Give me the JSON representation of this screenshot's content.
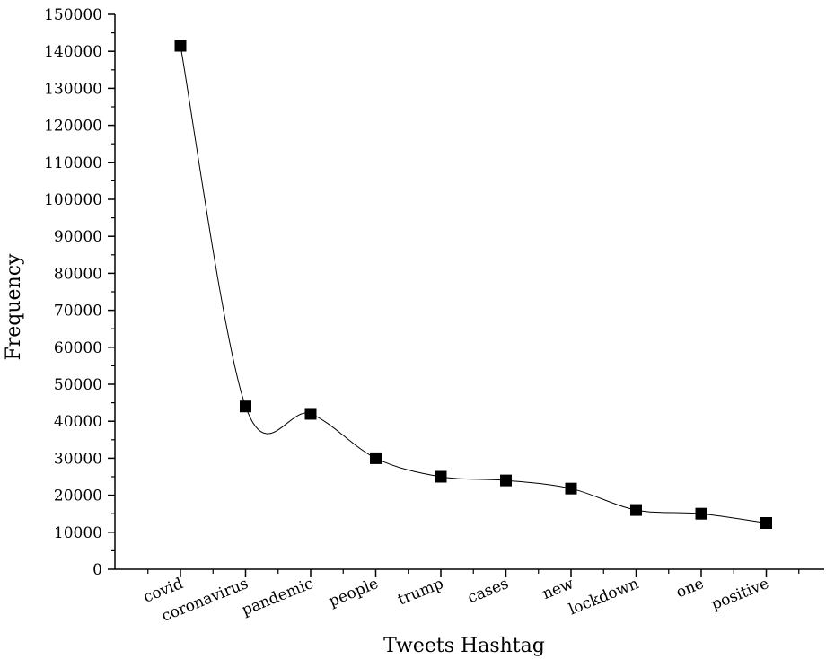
{
  "chart_data": {
    "type": "scatter",
    "xlabel": "Tweets Hashtag",
    "ylabel": "Frequency",
    "categories": [
      "covid",
      "coronavirus",
      "pandemic",
      "people",
      "trump",
      "cases",
      "new",
      "lockdown",
      "one",
      "positive"
    ],
    "values": [
      141500,
      44000,
      42000,
      30000,
      25000,
      24000,
      21800,
      16000,
      15000,
      12500
    ],
    "ylim": [
      0,
      150000
    ],
    "yticks": [
      0,
      10000,
      20000,
      30000,
      40000,
      50000,
      60000,
      70000,
      80000,
      90000,
      100000,
      110000,
      120000,
      130000,
      140000,
      150000
    ],
    "grid": false,
    "marker": "square",
    "line": "smooth",
    "series_color": "#000000"
  }
}
